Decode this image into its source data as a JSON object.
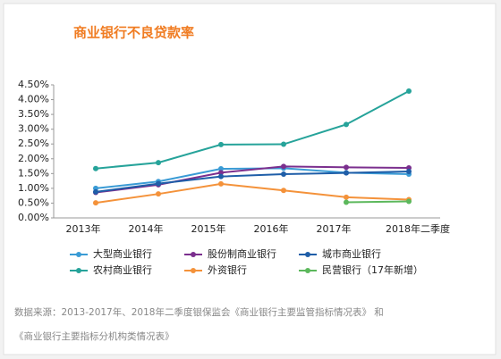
{
  "chart_data": {
    "type": "line",
    "title": "商业银行不良贷款率",
    "categories": [
      "2013年",
      "2014年",
      "2015年",
      "2016年",
      "2017年",
      "2018年二季度"
    ],
    "series": [
      {
        "name": "大型商业银行",
        "color": "#3a9bd5",
        "values": [
          1.0,
          1.23,
          1.66,
          1.68,
          1.53,
          1.48
        ]
      },
      {
        "name": "股份制商业银行",
        "color": "#7b2f8e",
        "values": [
          0.86,
          1.12,
          1.53,
          1.74,
          1.71,
          1.69
        ]
      },
      {
        "name": "城市商业银行",
        "color": "#1f5ea8",
        "values": [
          0.88,
          1.16,
          1.4,
          1.48,
          1.52,
          1.57
        ]
      },
      {
        "name": "农村商业银行",
        "color": "#26a39a",
        "values": [
          1.67,
          1.87,
          2.48,
          2.49,
          3.16,
          4.29
        ]
      },
      {
        "name": "外资银行",
        "color": "#f4923a",
        "values": [
          0.51,
          0.81,
          1.15,
          0.93,
          0.7,
          0.62
        ]
      },
      {
        "name": "民营银行（17年新增）",
        "color": "#5cb85c",
        "values": [
          null,
          null,
          null,
          null,
          0.53,
          0.56
        ]
      }
    ],
    "ylim": [
      0,
      4.5
    ],
    "yticks": [
      {
        "value": 0,
        "label": "0.00%"
      },
      {
        "value": 0.5,
        "label": "0.50%"
      },
      {
        "value": 1,
        "label": "1.00%"
      },
      {
        "value": 1.5,
        "label": "1.50%"
      },
      {
        "value": 2,
        "label": "2.00%"
      },
      {
        "value": 2.5,
        "label": "2.50%"
      },
      {
        "value": 3,
        "label": "3.00%"
      },
      {
        "value": 3.5,
        "label": "3.50%"
      },
      {
        "value": 4,
        "label": "4.00%"
      },
      {
        "value": 4.5,
        "label": "4.50%"
      }
    ],
    "grid": false,
    "legend": "bottom",
    "source": [
      "数据来源：2013-2017年、2018年二季度银保监会《商业银行主要监管指标情况表》 和",
      "《商业银行主要指标分机构类情况表》"
    ]
  }
}
